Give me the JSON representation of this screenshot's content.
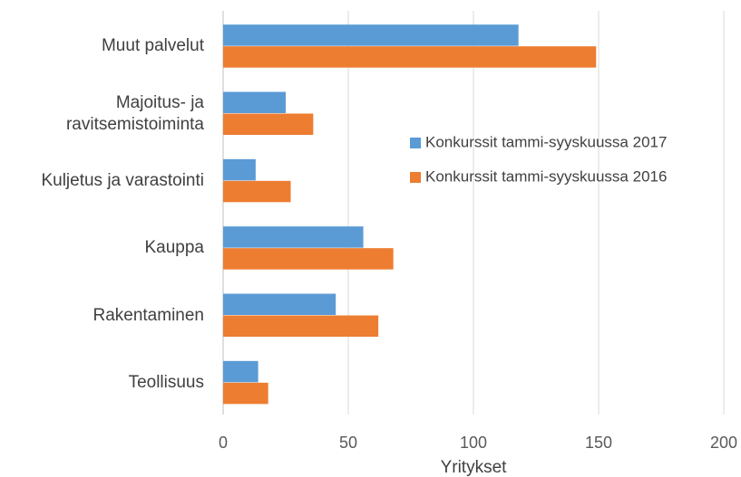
{
  "chart_data": {
    "type": "hbar",
    "categories": [
      "Muut palvelut",
      "Majoitus- ja\nravitsemistoiminta",
      "Kuljetus ja varastointi",
      "Kauppa",
      "Rakentaminen",
      "Teollisuus"
    ],
    "series": [
      {
        "name": "Konkurssit tammi-syyskuussa 2017",
        "color": "#5b9bd5",
        "values": [
          118,
          25,
          13,
          56,
          45,
          14
        ]
      },
      {
        "name": "Konkurssit tammi-syyskuussa 2016",
        "color": "#ed7d31",
        "values": [
          149,
          36,
          27,
          68,
          62,
          18
        ]
      }
    ],
    "xlabel": "Yritykset",
    "xlim": [
      0,
      200
    ],
    "xticks": [
      0,
      50,
      100,
      150,
      200
    ],
    "grid": true,
    "legend_position": "center-right"
  }
}
